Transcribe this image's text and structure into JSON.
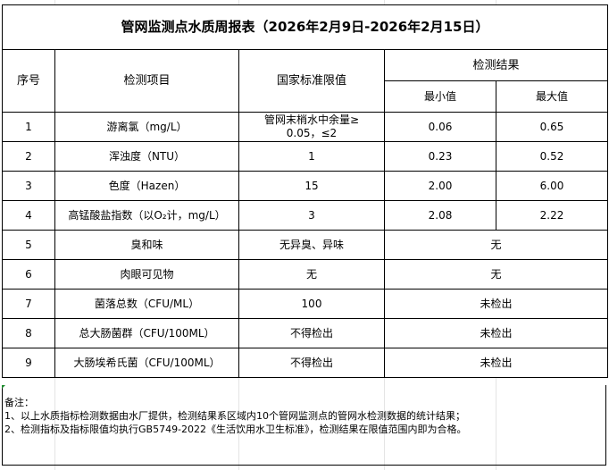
{
  "title": "管网监测点水质周报表（2026年2月9日-2026年2月15日）",
  "headers": {
    "no": "序号",
    "item": "检测项目",
    "standard": "国家标准限值",
    "result": "检测结果",
    "min": "最小值",
    "max": "最大值"
  },
  "rows": [
    {
      "no": "1",
      "item": "游离氯（mg/L）",
      "standard": "管网末梢水中余量≥ 0.05，≤2",
      "min": "0.06",
      "max": "0.65"
    },
    {
      "no": "2",
      "item": "浑浊度（NTU）",
      "standard": "1",
      "min": "0.23",
      "max": "0.52"
    },
    {
      "no": "3",
      "item": "色度（Hazen）",
      "standard": "15",
      "min": "2.00",
      "max": "6.00"
    },
    {
      "no": "4",
      "item": "高锰酸盐指数（以O₂计，mg/L）",
      "standard": "3",
      "min": "2.08",
      "max": "2.22"
    },
    {
      "no": "5",
      "item": "臭和味",
      "standard": "无异臭、异味",
      "result": "无"
    },
    {
      "no": "6",
      "item": "肉眼可见物",
      "standard": "无",
      "result": "无"
    },
    {
      "no": "7",
      "item": "菌落总数（CFU/ML）",
      "standard": "100",
      "result": "未检出"
    },
    {
      "no": "8",
      "item": "总大肠菌群（CFU/100ML）",
      "standard": "不得检出",
      "result": "未检出"
    },
    {
      "no": "9",
      "item": "大肠埃希氏菌（CFU/100ML）",
      "standard": "不得检出",
      "result": "未检出"
    }
  ],
  "notes": {
    "heading": "备注：",
    "line1": "1、以上水质指标检测数据由水厂提供，检测结果系区域内10个管网监测点的管网水检测数据的统计结果；",
    "line2": "2、检测指标及指标限值均执行GB5749-2022《生活饮用水卫生标准》，检测结果在限值范围内即为合格。"
  }
}
